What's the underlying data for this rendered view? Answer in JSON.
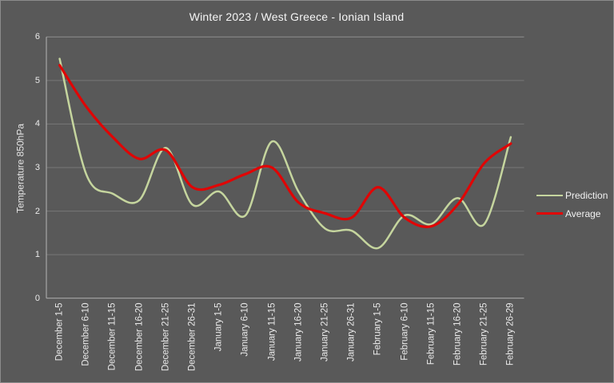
{
  "title": "Winter 2023 / West Greece - Ionian Island",
  "y_axis": {
    "title": "Temperature 850hPa",
    "ticks": [
      "0",
      "1",
      "2",
      "3",
      "4",
      "5",
      "6"
    ]
  },
  "legend": {
    "items": [
      {
        "label": "Prediction",
        "color": "#c5d59e"
      },
      {
        "label": "Average",
        "color": "#e00505"
      }
    ]
  },
  "colors": {
    "background": "#595959",
    "gridline": "#787878",
    "axis_line": "#a6a6a6",
    "text": "#eaeaea",
    "prediction_line": "#c5d59e",
    "average_line": "#e00505"
  },
  "chart_data": {
    "type": "line",
    "line_style": "smooth",
    "title": "Winter 2023 / West Greece - Ionian Island",
    "xlabel": "",
    "ylabel": "Temperature 850hPa",
    "ylim": [
      0,
      6
    ],
    "grid": "horizontal",
    "legend_position": "right",
    "categories": [
      "December 1-5",
      "December 6-10",
      "December 11-15",
      "December 16-20",
      "December 21-25",
      "December 26-31",
      "January 1-5",
      "January 6-10",
      "January 11-15",
      "January 16-20",
      "January 21-25",
      "January 26-31",
      "February 1-5",
      "February 6-10",
      "February 11-15",
      "February 16-20",
      "February 21-25",
      "February 26-29"
    ],
    "series": [
      {
        "name": "Prediction",
        "color": "#c5d59e",
        "width": 2.5,
        "values": [
          5.5,
          2.85,
          2.4,
          2.25,
          3.45,
          2.15,
          2.45,
          1.9,
          3.6,
          2.45,
          1.6,
          1.55,
          1.15,
          1.9,
          1.7,
          2.3,
          1.7,
          3.7
        ]
      },
      {
        "name": "Average",
        "color": "#e00505",
        "width": 3.2,
        "values": [
          5.35,
          4.4,
          3.7,
          3.2,
          3.4,
          2.55,
          2.6,
          2.85,
          3.0,
          2.2,
          1.95,
          1.85,
          2.55,
          1.85,
          1.65,
          2.15,
          3.1,
          3.55
        ]
      }
    ]
  }
}
